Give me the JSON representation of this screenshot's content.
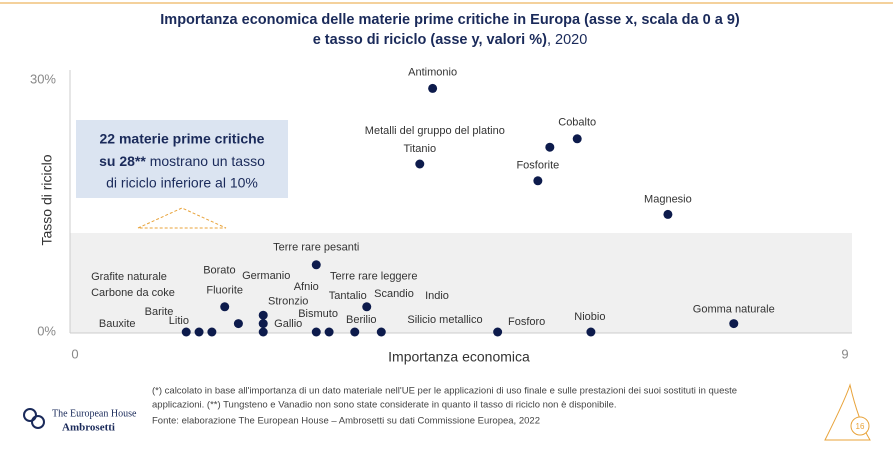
{
  "chart_data": {
    "type": "scatter",
    "title": "Importanza economica delle materie prime critiche in Europa (asse x, scala da 0 a 9)",
    "subtitle": "e tasso di riciclo (asse y, valori %)",
    "subtitle_year": ", 2020",
    "x_label": "Importanza economica",
    "y_label": "Tasso di riciclo",
    "xlim": [
      0,
      9
    ],
    "xticks": [
      0,
      9
    ],
    "ylim": [
      0,
      30
    ],
    "yticks": [
      {
        "value": 0,
        "label": "0%"
      },
      {
        "value": 30,
        "label": "30%"
      }
    ],
    "color": "#0d1b4c",
    "names": [
      "Antimonio",
      "Metalli del gruppo del platino",
      "Cobalto",
      "Titanio",
      "Fosforite",
      "Magnesio",
      "Terre rare pesanti",
      "Terre rare leggere",
      "Fluorite",
      "Borato",
      "Germanio",
      "Stronzio",
      "Gallio",
      "Bauxite",
      "Barite",
      "Litio",
      "Afnio",
      "Bismuto",
      "Tantalio",
      "Berilio",
      "Fosforo",
      "Niobio",
      "Gomma naturale"
    ],
    "x": [
      4.18,
      5.55,
      5.87,
      4.03,
      5.41,
      6.93,
      2.82,
      3.41,
      1.75,
      1.91,
      2.2,
      2.2,
      2.2,
      1.3,
      1.45,
      1.6,
      2.82,
      2.97,
      3.27,
      3.58,
      4.94,
      6.03,
      7.7
    ],
    "values": [
      29,
      22,
      23,
      20,
      18,
      14,
      8,
      3,
      3,
      1,
      2,
      1,
      0,
      0,
      0,
      0,
      0,
      0,
      0,
      0,
      0,
      0,
      1
    ],
    "annotations": [
      "Grafite naturale",
      "Carbone da coke",
      "Scandio",
      "Indio",
      "Silicio metallico"
    ]
  },
  "callout": {
    "lines": [
      "22 materie prime critiche",
      "su 28**",
      " mostrano un tasso",
      "di riciclo inferiore al 10%"
    ]
  },
  "footnotes": [
    "(*) calcolato in base all'importanza di un dato materiale nell'UE per le applicazioni di uso finale e sulle prestazioni dei suoi sostituti in queste",
    "applicazioni. (**) Tungsteno e Vanadio non sono state considerate in quanto il tasso di riciclo non è disponibile.",
    "Fonte: elaborazione The European House – Ambrosetti su dati Commissione Europea, 2022"
  ],
  "logo": [
    "The European House",
    "Ambrosetti"
  ],
  "page_number": "16"
}
